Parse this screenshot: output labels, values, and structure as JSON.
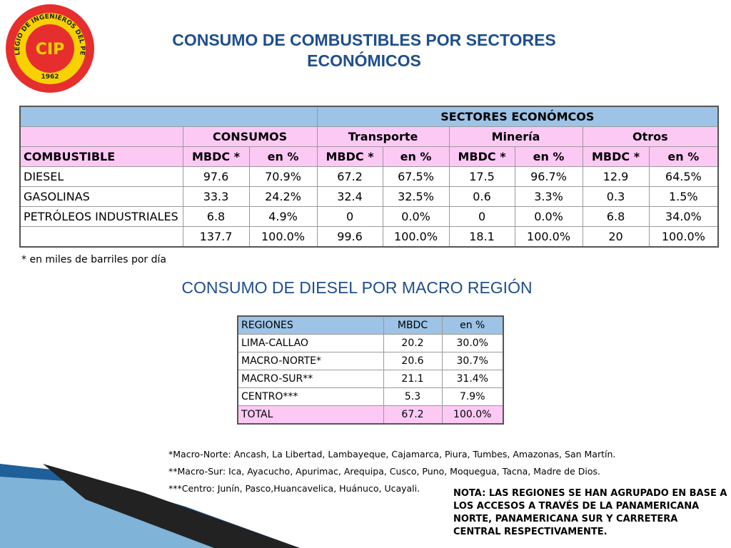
{
  "logo": {
    "ring_text": "COLEGIO DE INGENIEROS DEL PERÚ",
    "mark": "CIP",
    "year": "1962"
  },
  "header": {
    "title": "CONSUMO DE COMBUSTIBLES POR SECTORES ECONÓMICOS"
  },
  "sector_table": {
    "super_header": "SECTORES ECONÓMCOS",
    "groups": [
      "CONSUMOS",
      "Transporte",
      "Minería",
      "Otros"
    ],
    "columns": [
      "COMBUSTIBLE",
      "MBDC *",
      "en %",
      "MBDC *",
      "en %",
      "MBDC *",
      "en %",
      "MBDC *",
      "en %"
    ],
    "rows": [
      [
        "DIESEL",
        "97.6",
        "70.9%",
        "67.2",
        "67.5%",
        "17.5",
        "96.7%",
        "12.9",
        "64.5%"
      ],
      [
        "GASOLINAS",
        "33.3",
        "24.2%",
        "32.4",
        "32.5%",
        "0.6",
        "3.3%",
        "0.3",
        "1.5%"
      ],
      [
        "PETRÓLEOS INDUSTRIALES",
        "6.8",
        "4.9%",
        "0",
        "0.0%",
        "0",
        "0.0%",
        "6.8",
        "34.0%"
      ]
    ],
    "total": [
      "137.7",
      "100.0%",
      "99.6",
      "100.0%",
      "18.1",
      "100.0%",
      "20",
      "100.0%"
    ],
    "footnote": "* en miles de barriles por día"
  },
  "region_section": {
    "title": "CONSUMO DE DIESEL POR MACRO REGIÓN"
  },
  "region_table": {
    "columns": [
      "REGIONES",
      "MBDC",
      "en %"
    ],
    "rows": [
      [
        "LIMA-CALLAO",
        "20.2",
        "30.0%"
      ],
      [
        "MACRO-NORTE*",
        "20.6",
        "30.7%"
      ],
      [
        "MACRO-SUR**",
        "21.1",
        "31.4%"
      ],
      [
        "CENTRO***",
        "5.3",
        "7.9%"
      ]
    ],
    "total": [
      "TOTAL",
      "67.2",
      "100.0%"
    ]
  },
  "notes": [
    "*Macro-Norte: Ancash, La Libertad, Lambayeque, Cajamarca, Piura, Tumbes, Amazonas, San Martín.",
    "**Macro-Sur: Ica, Ayacucho, Apurimac, Arequipa, Cusco, Puno, Moquegua, Tacna, Madre de Dios.",
    "***Centro: Junín, Pasco,Huancavelica, Huánuco, Ucayali."
  ],
  "remark": "NOTA: LAS REGIONES SE HAN AGRUPADO EN BASE A LOS ACCESOS A TRAVÉS DE LA PANAMERICANA NORTE, PANAMERICANA SUR Y CARRETERA CENTRAL RESPECTIVAMENTE."
}
